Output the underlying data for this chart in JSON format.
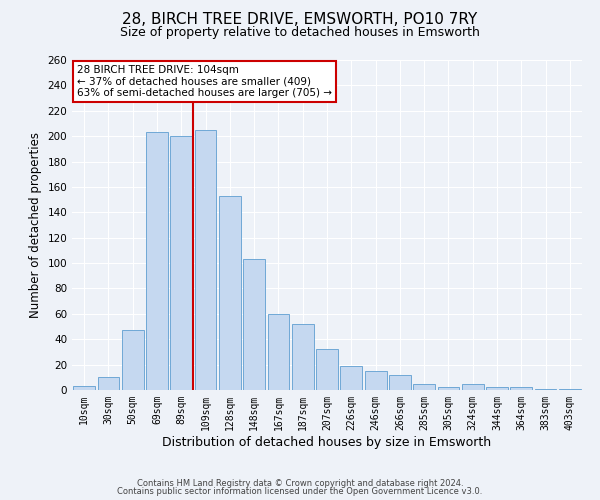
{
  "title": "28, BIRCH TREE DRIVE, EMSWORTH, PO10 7RY",
  "subtitle": "Size of property relative to detached houses in Emsworth",
  "xlabel": "Distribution of detached houses by size in Emsworth",
  "ylabel": "Number of detached properties",
  "bin_labels": [
    "10sqm",
    "30sqm",
    "50sqm",
    "69sqm",
    "89sqm",
    "109sqm",
    "128sqm",
    "148sqm",
    "167sqm",
    "187sqm",
    "207sqm",
    "226sqm",
    "246sqm",
    "266sqm",
    "285sqm",
    "305sqm",
    "324sqm",
    "344sqm",
    "364sqm",
    "383sqm",
    "403sqm"
  ],
  "bar_values": [
    3,
    10,
    47,
    203,
    200,
    205,
    153,
    103,
    60,
    52,
    32,
    19,
    15,
    12,
    5,
    2,
    5,
    2,
    2,
    1,
    1
  ],
  "bar_color": "#c5d8f0",
  "bar_edge_color": "#6fa8d6",
  "vline_x": 4.5,
  "vline_color": "#cc0000",
  "ylim": [
    0,
    260
  ],
  "yticks": [
    0,
    20,
    40,
    60,
    80,
    100,
    120,
    140,
    160,
    180,
    200,
    220,
    240,
    260
  ],
  "annotation_title": "28 BIRCH TREE DRIVE: 104sqm",
  "annotation_line1": "← 37% of detached houses are smaller (409)",
  "annotation_line2": "63% of semi-detached houses are larger (705) →",
  "annotation_box_color": "#ffffff",
  "annotation_border_color": "#cc0000",
  "footnote1": "Contains HM Land Registry data © Crown copyright and database right 2024.",
  "footnote2": "Contains public sector information licensed under the Open Government Licence v3.0.",
  "background_color": "#eef2f8",
  "title_fontsize": 11,
  "subtitle_fontsize": 9,
  "xlabel_fontsize": 9,
  "ylabel_fontsize": 8.5
}
